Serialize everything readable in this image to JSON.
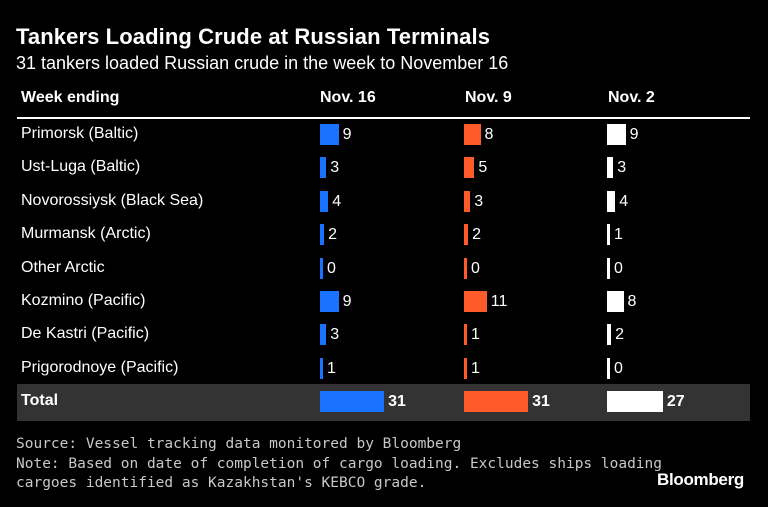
{
  "title": "Tankers Loading Crude at Russian Terminals",
  "subtitle": "31 tankers loaded Russian crude in the week to November 16",
  "header_label": "Week ending",
  "footer": {
    "source": "Source: Vessel tracking data monitored by Bloomberg",
    "note_line1": "Note: Based on date of completion of cargo loading. Excludes ships loading",
    "note_line2": "cargoes identified as Kazakhstan's KEBCO grade."
  },
  "brand": "Bloomberg",
  "colors": {
    "background": "#000000",
    "total_band": "#333333",
    "text": "#ffffff",
    "footer_text": "#c8c8c8"
  },
  "chart_data": {
    "type": "table",
    "columns": [
      {
        "name": "Nov. 16",
        "color": "#1a73ff"
      },
      {
        "name": "Nov. 9",
        "color": "#ff5a2a"
      },
      {
        "name": "Nov. 2",
        "color": "#ffffff"
      }
    ],
    "rows": [
      {
        "label": "Primorsk (Baltic)",
        "values": [
          9,
          8,
          9
        ]
      },
      {
        "label": "Ust-Luga (Baltic)",
        "values": [
          3,
          5,
          3
        ]
      },
      {
        "label": "Novorossiysk (Black Sea)",
        "values": [
          4,
          3,
          4
        ]
      },
      {
        "label": "Murmansk (Arctic)",
        "values": [
          2,
          2,
          1
        ]
      },
      {
        "label": "Other Arctic",
        "values": [
          0,
          0,
          0
        ]
      },
      {
        "label": "Kozmino (Pacific)",
        "values": [
          9,
          11,
          8
        ]
      },
      {
        "label": "De Kastri (Pacific)",
        "values": [
          3,
          1,
          2
        ]
      },
      {
        "label": "Prigorodnoye (Pacific)",
        "values": [
          1,
          1,
          0
        ]
      }
    ],
    "total": {
      "label": "Total",
      "values": [
        31,
        31,
        27
      ]
    }
  }
}
